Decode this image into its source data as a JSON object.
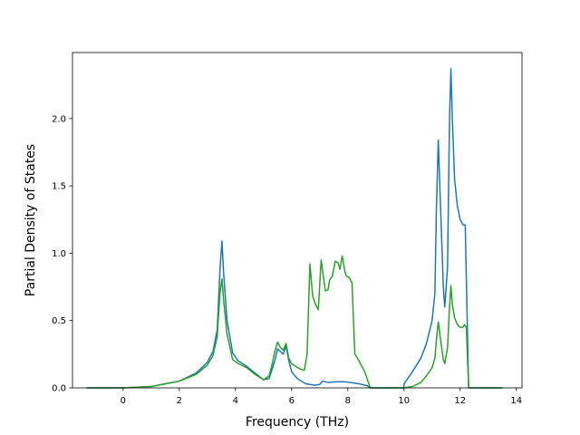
{
  "chart_data": {
    "type": "line",
    "title": "",
    "xlabel": "Frequency (THz)",
    "ylabel": "Partial Density of States",
    "xlim": [
      -1.8,
      14.2
    ],
    "ylim": [
      0,
      2.49
    ],
    "xticks": [
      0,
      2,
      4,
      6,
      8,
      10,
      12,
      14
    ],
    "xtick_labels": [
      "0",
      "2",
      "4",
      "6",
      "8",
      "10",
      "12",
      "14"
    ],
    "yticks": [
      0.0,
      0.5,
      1.0,
      1.5,
      2.0
    ],
    "ytick_labels": [
      "0.0",
      "0.5",
      "1.0",
      "1.5",
      "2.0"
    ],
    "grid": false,
    "legend": "none",
    "series": [
      {
        "color": "#1f77b4",
        "points": [
          [
            -1.3,
            0
          ],
          [
            0,
            0
          ],
          [
            1,
            0.01
          ],
          [
            2,
            0.05
          ],
          [
            2.6,
            0.11
          ],
          [
            3.0,
            0.19
          ],
          [
            3.2,
            0.27
          ],
          [
            3.35,
            0.43
          ],
          [
            3.45,
            0.88
          ],
          [
            3.52,
            1.09
          ],
          [
            3.58,
            0.85
          ],
          [
            3.7,
            0.5
          ],
          [
            3.9,
            0.26
          ],
          [
            4.1,
            0.2
          ],
          [
            4.4,
            0.16
          ],
          [
            4.7,
            0.11
          ],
          [
            5.0,
            0.06
          ],
          [
            5.2,
            0.07
          ],
          [
            5.4,
            0.2
          ],
          [
            5.5,
            0.29
          ],
          [
            5.6,
            0.27
          ],
          [
            5.7,
            0.25
          ],
          [
            5.8,
            0.31
          ],
          [
            5.9,
            0.2
          ],
          [
            6.0,
            0.12
          ],
          [
            6.2,
            0.07
          ],
          [
            6.5,
            0.03
          ],
          [
            6.8,
            0.02
          ],
          [
            7.0,
            0.025
          ],
          [
            7.1,
            0.05
          ],
          [
            7.3,
            0.04
          ],
          [
            7.6,
            0.045
          ],
          [
            7.9,
            0.045
          ],
          [
            8.1,
            0.04
          ],
          [
            8.4,
            0.03
          ],
          [
            8.7,
            0.015
          ],
          [
            8.8,
            0
          ],
          [
            10.0,
            0
          ],
          [
            10.0,
            0.03
          ],
          [
            10.3,
            0.12
          ],
          [
            10.6,
            0.22
          ],
          [
            10.8,
            0.33
          ],
          [
            11.0,
            0.5
          ],
          [
            11.1,
            0.7
          ],
          [
            11.15,
            1.3
          ],
          [
            11.22,
            1.84
          ],
          [
            11.3,
            1.35
          ],
          [
            11.4,
            0.75
          ],
          [
            11.45,
            0.6
          ],
          [
            11.55,
            0.9
          ],
          [
            11.62,
            2.0
          ],
          [
            11.67,
            2.37
          ],
          [
            11.72,
            2.0
          ],
          [
            11.8,
            1.55
          ],
          [
            11.9,
            1.35
          ],
          [
            12.0,
            1.25
          ],
          [
            12.1,
            1.21
          ],
          [
            12.18,
            1.21
          ],
          [
            12.22,
            0.8
          ],
          [
            12.3,
            0
          ],
          [
            13.5,
            0
          ]
        ]
      },
      {
        "color": "#2ca02c",
        "points": [
          [
            -1.3,
            0
          ],
          [
            0,
            0
          ],
          [
            1,
            0.01
          ],
          [
            2,
            0.05
          ],
          [
            2.6,
            0.1
          ],
          [
            3.0,
            0.17
          ],
          [
            3.2,
            0.24
          ],
          [
            3.35,
            0.38
          ],
          [
            3.45,
            0.7
          ],
          [
            3.52,
            0.81
          ],
          [
            3.58,
            0.65
          ],
          [
            3.7,
            0.4
          ],
          [
            3.9,
            0.21
          ],
          [
            4.1,
            0.18
          ],
          [
            4.4,
            0.15
          ],
          [
            4.7,
            0.1
          ],
          [
            5.0,
            0.06
          ],
          [
            5.2,
            0.09
          ],
          [
            5.3,
            0.17
          ],
          [
            5.4,
            0.27
          ],
          [
            5.5,
            0.34
          ],
          [
            5.6,
            0.3
          ],
          [
            5.7,
            0.28
          ],
          [
            5.8,
            0.33
          ],
          [
            5.9,
            0.22
          ],
          [
            6.0,
            0.18
          ],
          [
            6.3,
            0.14
          ],
          [
            6.45,
            0.13
          ],
          [
            6.55,
            0.25
          ],
          [
            6.65,
            0.92
          ],
          [
            6.75,
            0.68
          ],
          [
            6.85,
            0.62
          ],
          [
            6.95,
            0.58
          ],
          [
            7.05,
            0.95
          ],
          [
            7.2,
            0.72
          ],
          [
            7.3,
            0.73
          ],
          [
            7.35,
            0.8
          ],
          [
            7.45,
            0.83
          ],
          [
            7.55,
            0.94
          ],
          [
            7.65,
            0.93
          ],
          [
            7.72,
            0.88
          ],
          [
            7.8,
            0.98
          ],
          [
            7.9,
            0.86
          ],
          [
            7.95,
            0.83
          ],
          [
            8.05,
            0.82
          ],
          [
            8.15,
            0.78
          ],
          [
            8.25,
            0.25
          ],
          [
            8.4,
            0.2
          ],
          [
            8.6,
            0.12
          ],
          [
            8.8,
            0
          ],
          [
            10.0,
            0
          ],
          [
            10.3,
            0.01
          ],
          [
            10.6,
            0.04
          ],
          [
            10.8,
            0.09
          ],
          [
            11.0,
            0.15
          ],
          [
            11.1,
            0.22
          ],
          [
            11.15,
            0.35
          ],
          [
            11.22,
            0.49
          ],
          [
            11.3,
            0.36
          ],
          [
            11.4,
            0.21
          ],
          [
            11.45,
            0.18
          ],
          [
            11.55,
            0.3
          ],
          [
            11.62,
            0.6
          ],
          [
            11.67,
            0.76
          ],
          [
            11.72,
            0.62
          ],
          [
            11.8,
            0.52
          ],
          [
            11.9,
            0.47
          ],
          [
            12.0,
            0.45
          ],
          [
            12.1,
            0.45
          ],
          [
            12.15,
            0.47
          ],
          [
            12.22,
            0.45
          ],
          [
            12.3,
            0
          ],
          [
            13.5,
            0
          ]
        ]
      }
    ]
  }
}
